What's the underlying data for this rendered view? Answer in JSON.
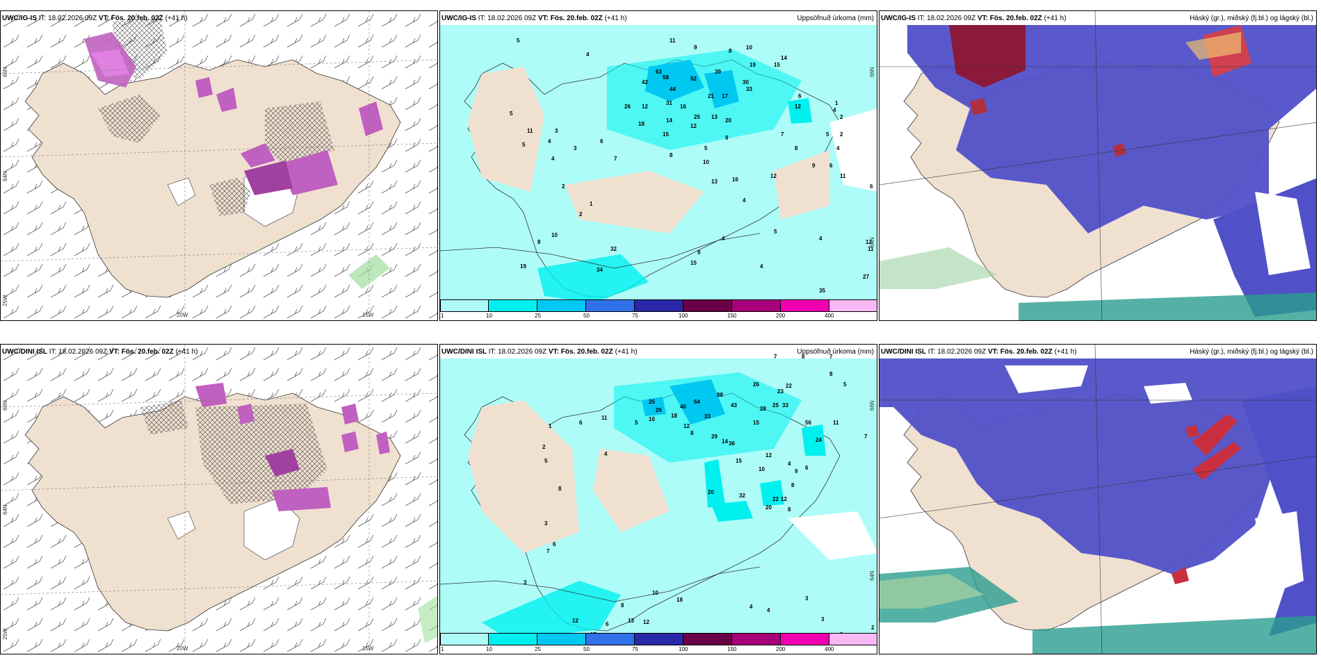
{
  "panels": [
    {
      "model": "UWC/IG-IS",
      "it": "IT: 18.02.2026 09Z",
      "vt": "VT: Fös. 20.feb. 02Z",
      "lead": "(+41 h)",
      "title": "",
      "lat1": "66N",
      "lat2": "64N",
      "lat3": "25W",
      "lon1": "20W",
      "lon2": "15W",
      "rlat1": "66N",
      "rlat2": "64N"
    },
    {
      "model": "UWC/IG-IS",
      "it": "IT: 18.02.2026 09Z",
      "vt": "VT: Fös. 20.feb. 02Z",
      "lead": "(+41 h)",
      "title": "Uppsöfnuð úrkoma (mm)",
      "lat1": "",
      "lat2": "",
      "lat3": "",
      "lon1": "",
      "lon2": "",
      "rlat1": "66N",
      "rlat2": "64N"
    },
    {
      "model": "UWC/IG-IS",
      "it": "IT: 18.02.2026 09Z",
      "vt": "VT: Fös. 20.feb. 02Z",
      "lead": "(+41 h)",
      "title": "Háský (gr.), miðský (fj.bl.) og lágský (bl.)",
      "lat1": "",
      "lat2": "",
      "lat3": "",
      "lon1": "",
      "lon2": "",
      "rlat1": "",
      "rlat2": ""
    },
    {
      "model": "UWC/DINI ISL",
      "it": "IT: 18.02.2026 09Z",
      "vt": "VT: Fös. 20.feb. 02Z",
      "lead": "(+41 h)",
      "title": "",
      "lat1": "66N",
      "lat2": "64N",
      "lat3": "25W",
      "lon1": "20W",
      "lon2": "15W",
      "rlat1": "66N",
      "rlat2": "64N"
    },
    {
      "model": "UWC/DINI ISL",
      "it": "IT: 18.02.2026 09Z",
      "vt": "VT: Fös. 20.feb. 02Z",
      "lead": "(+41 h)",
      "title": "Uppsöfnuð úrkoma (mm)",
      "lat1": "",
      "lat2": "",
      "lat3": "",
      "lon1": "",
      "lon2": "",
      "rlat1": "66N",
      "rlat2": "64N"
    },
    {
      "model": "UWC/DINI ISL",
      "it": "IT: 18.02.2026 09Z",
      "vt": "VT: Fös. 20.feb. 02Z",
      "lead": "(+41 h)",
      "title": "Háský (gr.), miðský (fj.bl.) og lágský (bl.)",
      "lat1": "",
      "lat2": "",
      "lat3": "",
      "lon1": "",
      "lon2": "",
      "rlat1": "",
      "rlat2": ""
    }
  ],
  "colorbar": {
    "ticks": [
      "1",
      "10",
      "25",
      "50",
      "75",
      "100",
      "150",
      "200",
      "400"
    ],
    "colors": [
      "#aefcf8",
      "#00f0f0",
      "#00c8f0",
      "#3070e8",
      "#2828a8",
      "#6a0045",
      "#a8007a",
      "#f000b0",
      "#f8b8f4"
    ]
  },
  "colors": {
    "land": "#f0e0d0",
    "precip_light": "#aefcf8",
    "cloud_mid": "#5050c8",
    "cloud_high": "#8b1a3a"
  },
  "precip_values": {
    "top": [
      "5",
      "4",
      "11",
      "9",
      "8",
      "10",
      "19",
      "15",
      "14",
      "63",
      "42",
      "58",
      "52",
      "39",
      "30",
      "44",
      "33",
      "21",
      "17",
      "26",
      "12",
      "31",
      "16",
      "25",
      "13",
      "20",
      "5",
      "14",
      "18",
      "12",
      "15",
      "9",
      "5",
      "7",
      "4",
      "11",
      "3",
      "4",
      "5",
      "3",
      "6",
      "8",
      "10",
      "13",
      "16",
      "12",
      "4",
      "2",
      "1",
      "2",
      "8",
      "10",
      "19",
      "32",
      "34",
      "15",
      "9",
      "4",
      "5",
      "4",
      "4",
      "35",
      "27",
      "11",
      "12",
      "6",
      "4",
      "2",
      "1",
      "2",
      "4",
      "11",
      "6",
      "12",
      "9",
      "6",
      "5",
      "7",
      "8"
    ],
    "bottom": [
      "7",
      "8",
      "7",
      "8",
      "26",
      "23",
      "22",
      "25",
      "33",
      "88",
      "64",
      "43",
      "28",
      "25",
      "26",
      "40",
      "18",
      "33",
      "15",
      "56",
      "11",
      "24",
      "7",
      "12",
      "10",
      "8",
      "11",
      "6",
      "5",
      "5",
      "1",
      "29",
      "14",
      "36",
      "15",
      "12",
      "10",
      "4",
      "9",
      "8",
      "6",
      "1",
      "2",
      "5",
      "4",
      "8",
      "12",
      "20",
      "32",
      "22",
      "20",
      "8",
      "3",
      "6",
      "7",
      "18",
      "13",
      "12",
      "15",
      "12",
      "3",
      "13",
      "4",
      "4",
      "3",
      "3",
      "3",
      "2",
      "10",
      "6",
      "8"
    ]
  }
}
